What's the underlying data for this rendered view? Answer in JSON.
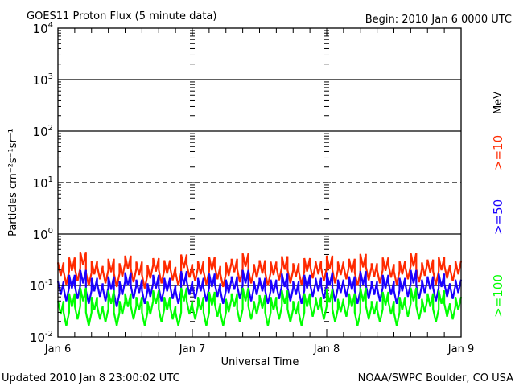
{
  "header": {
    "title": "GOES11 Proton Flux (5 minute data)",
    "begin": "Begin: 2010 Jan 6 0000 UTC"
  },
  "footer": {
    "updated": "Updated 2010 Jan  8 23:00:02 UTC",
    "source": "NOAA/SWPC Boulder, CO USA"
  },
  "chart_data": {
    "type": "line",
    "title": "GOES11 Proton Flux (5 minute data)",
    "xlabel": "Universal Time",
    "ylabel": "Particles cm⁻²s⁻¹sr⁻¹",
    "y_scale": "log",
    "ylim": [
      0.01,
      10000
    ],
    "y_ticks": [
      {
        "base": "10",
        "exp": "4"
      },
      {
        "base": "10",
        "exp": "3"
      },
      {
        "base": "10",
        "exp": "2"
      },
      {
        "base": "10",
        "exp": "1"
      },
      {
        "base": "10",
        "exp": "0"
      },
      {
        "base": "10",
        "exp": "-1"
      },
      {
        "base": "10",
        "exp": "-2"
      }
    ],
    "x_ticks": [
      "Jan 6",
      "Jan 7",
      "Jan 8",
      "Jan 9"
    ],
    "xlim_hours": [
      0,
      72
    ],
    "x_resolution": "hourly samples, hours since Jan 6 0000 UTC",
    "units_label": "MeV",
    "series": [
      {
        "name": ">=10",
        "color": "#ff2a00",
        "values": [
          0.28,
          0.19,
          0.35,
          0.22,
          0.45,
          0.18,
          0.3,
          0.24,
          0.2,
          0.33,
          0.17,
          0.27,
          0.38,
          0.21,
          0.29,
          0.16,
          0.25,
          0.34,
          0.2,
          0.31,
          0.23,
          0.18,
          0.4,
          0.26,
          0.22,
          0.3,
          0.19,
          0.36,
          0.24,
          0.17,
          0.28,
          0.33,
          0.21,
          0.42,
          0.2,
          0.26,
          0.31,
          0.18,
          0.29,
          0.23,
          0.37,
          0.2,
          0.27,
          0.19,
          0.34,
          0.25,
          0.3,
          0.22,
          0.38,
          0.2,
          0.29,
          0.24,
          0.33,
          0.18,
          0.41,
          0.23,
          0.27,
          0.2,
          0.35,
          0.26,
          0.19,
          0.3,
          0.24,
          0.43,
          0.21,
          0.28,
          0.32,
          0.19,
          0.36,
          0.25,
          0.22,
          0.3
        ]
      },
      {
        "name": ">=50",
        "color": "#1a00ff",
        "values": [
          0.12,
          0.09,
          0.16,
          0.1,
          0.2,
          0.08,
          0.14,
          0.11,
          0.09,
          0.15,
          0.07,
          0.12,
          0.18,
          0.1,
          0.13,
          0.08,
          0.11,
          0.16,
          0.09,
          0.14,
          0.1,
          0.08,
          0.19,
          0.12,
          0.1,
          0.14,
          0.09,
          0.17,
          0.11,
          0.08,
          0.13,
          0.15,
          0.1,
          0.2,
          0.09,
          0.12,
          0.14,
          0.08,
          0.13,
          0.1,
          0.17,
          0.09,
          0.12,
          0.08,
          0.16,
          0.11,
          0.14,
          0.1,
          0.18,
          0.09,
          0.13,
          0.11,
          0.15,
          0.08,
          0.19,
          0.1,
          0.12,
          0.09,
          0.16,
          0.12,
          0.08,
          0.14,
          0.11,
          0.2,
          0.1,
          0.13,
          0.15,
          0.09,
          0.17,
          0.11,
          0.1,
          0.13
        ]
      },
      {
        "name": ">=100",
        "color": "#00ff00",
        "values": [
          0.05,
          0.03,
          0.07,
          0.04,
          0.09,
          0.03,
          0.06,
          0.04,
          0.035,
          0.08,
          0.03,
          0.05,
          0.07,
          0.04,
          0.06,
          0.03,
          0.05,
          0.08,
          0.035,
          0.06,
          0.04,
          0.03,
          0.09,
          0.05,
          0.04,
          0.06,
          0.03,
          0.075,
          0.045,
          0.03,
          0.055,
          0.07,
          0.035,
          0.09,
          0.04,
          0.05,
          0.065,
          0.03,
          0.06,
          0.04,
          0.08,
          0.035,
          0.05,
          0.03,
          0.07,
          0.045,
          0.06,
          0.04,
          0.085,
          0.035,
          0.055,
          0.045,
          0.07,
          0.03,
          0.09,
          0.04,
          0.05,
          0.035,
          0.075,
          0.05,
          0.03,
          0.06,
          0.045,
          0.09,
          0.04,
          0.055,
          0.07,
          0.035,
          0.08,
          0.045,
          0.04,
          0.06
        ]
      }
    ]
  }
}
